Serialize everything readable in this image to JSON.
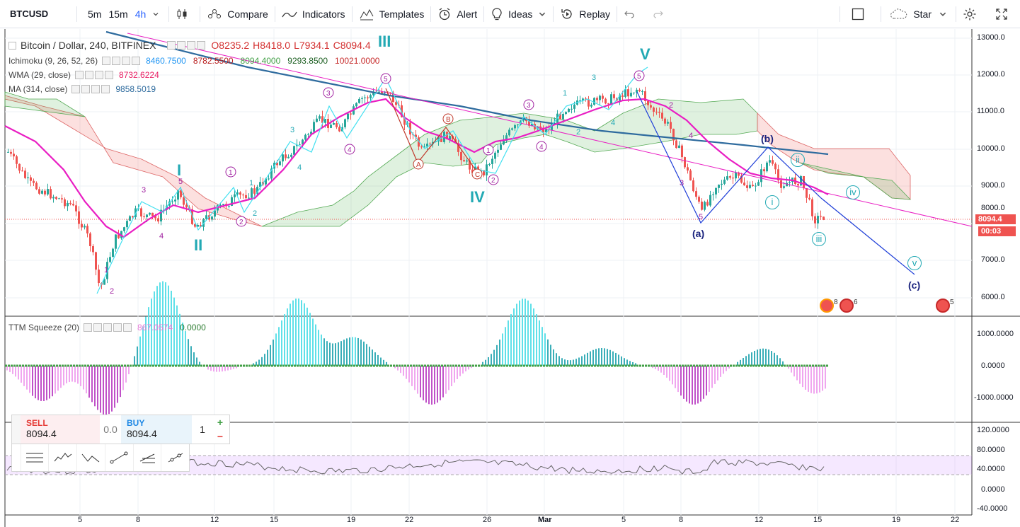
{
  "toolbar": {
    "symbol": "BTCUSD",
    "intervals": [
      "5m",
      "15m",
      "4h"
    ],
    "active_interval": "4h",
    "compare_label": "Compare",
    "indicators_label": "Indicators",
    "templates_label": "Templates",
    "alert_label": "Alert",
    "ideas_label": "Ideas",
    "replay_label": "Replay",
    "star_label": "Star"
  },
  "legend": {
    "main": {
      "name": "Bitcoin / Dollar, 240, BITFINEX",
      "open": "O8235.2",
      "high": "H8418.0",
      "low": "L7934.1",
      "close": "C8094.4"
    },
    "ichimoku": {
      "name": "Ichimoku (9, 26, 52, 26)",
      "values": [
        "8460.7500",
        "8782.5500",
        "8094.4000",
        "9293.8500",
        "10021.0000"
      ],
      "colors": [
        "#2196f3",
        "#b71c1c",
        "#43a047",
        "#1b5e20",
        "#c62828"
      ]
    },
    "wma": {
      "name": "WMA (29, close)",
      "value": "8732.6224",
      "color": "#e91e63"
    },
    "ma": {
      "name": "MA (314, close)",
      "value": "9858.5019",
      "color": "#2e6b9e"
    },
    "ttm": {
      "name": "TTM Squeeze (20)",
      "value1": "867.0574",
      "value2": "0.0000"
    }
  },
  "price_axis": {
    "labels": [
      "13000.0",
      "12000.0",
      "11000.0",
      "10000.0",
      "9000.0",
      "8000.0",
      "7000.0",
      "6000.0"
    ],
    "current": "8094.4",
    "countdown": "00:03"
  },
  "ttm_axis": [
    "1000.0000",
    "0.0000",
    "-1000.0000"
  ],
  "rsi_axis": [
    "120.0000",
    "80.0000",
    "40.0000",
    "0.0000",
    "-40.0000"
  ],
  "time_axis": [
    "5",
    "8",
    "12",
    "15",
    "19",
    "22",
    "26",
    "Mar",
    "5",
    "8",
    "12",
    "15",
    "19",
    "22"
  ],
  "waves": {
    "big": [
      "I",
      "II",
      "III",
      "IV",
      "V"
    ],
    "abc": [
      "(a)",
      "(b)",
      "(c)"
    ],
    "roman": [
      "i",
      "ii",
      "iii",
      "iv",
      "v"
    ]
  },
  "trade": {
    "sell_label": "SELL",
    "sell_price": "8094.4",
    "spread": "0.0",
    "buy_label": "BUY",
    "buy_price": "8094.4",
    "qty": "1",
    "plus": "+",
    "minus": "−"
  },
  "badges": [
    "8",
    "6",
    "5"
  ]
}
